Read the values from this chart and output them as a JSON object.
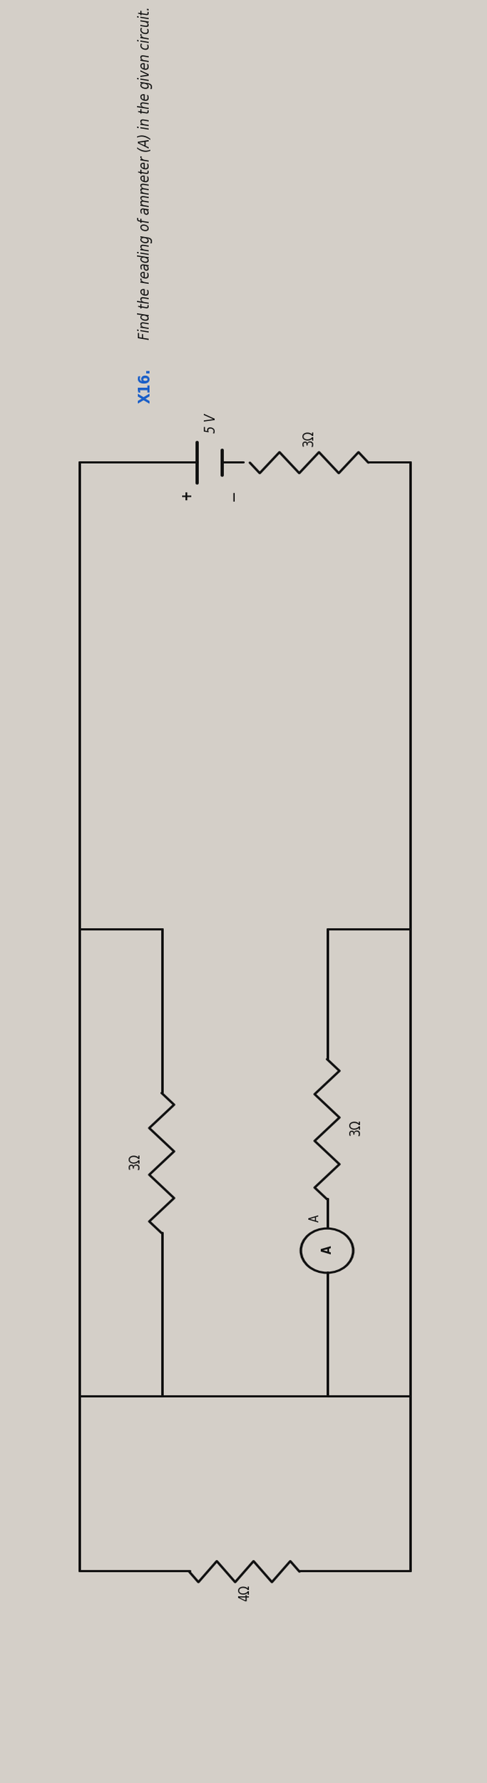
{
  "title_prefix": "X16.",
  "title_rest": "  Find the reading of ammeter (A) in the given circuit.",
  "title_color": "#000000",
  "title_prefix_color": "#1a5fc8",
  "bg_color": "#d4cfc8",
  "fig_width": 6.83,
  "fig_height": 24.99,
  "dpi": 100,
  "circuit": {
    "battery_voltage": "5 V",
    "r1_label": "3Ω",
    "r2_label": "3Ω",
    "r3_label": "3Ω",
    "r4_label": "4Ω",
    "ammeter_label": "A"
  },
  "line_width": 2.2,
  "black": "#111111"
}
